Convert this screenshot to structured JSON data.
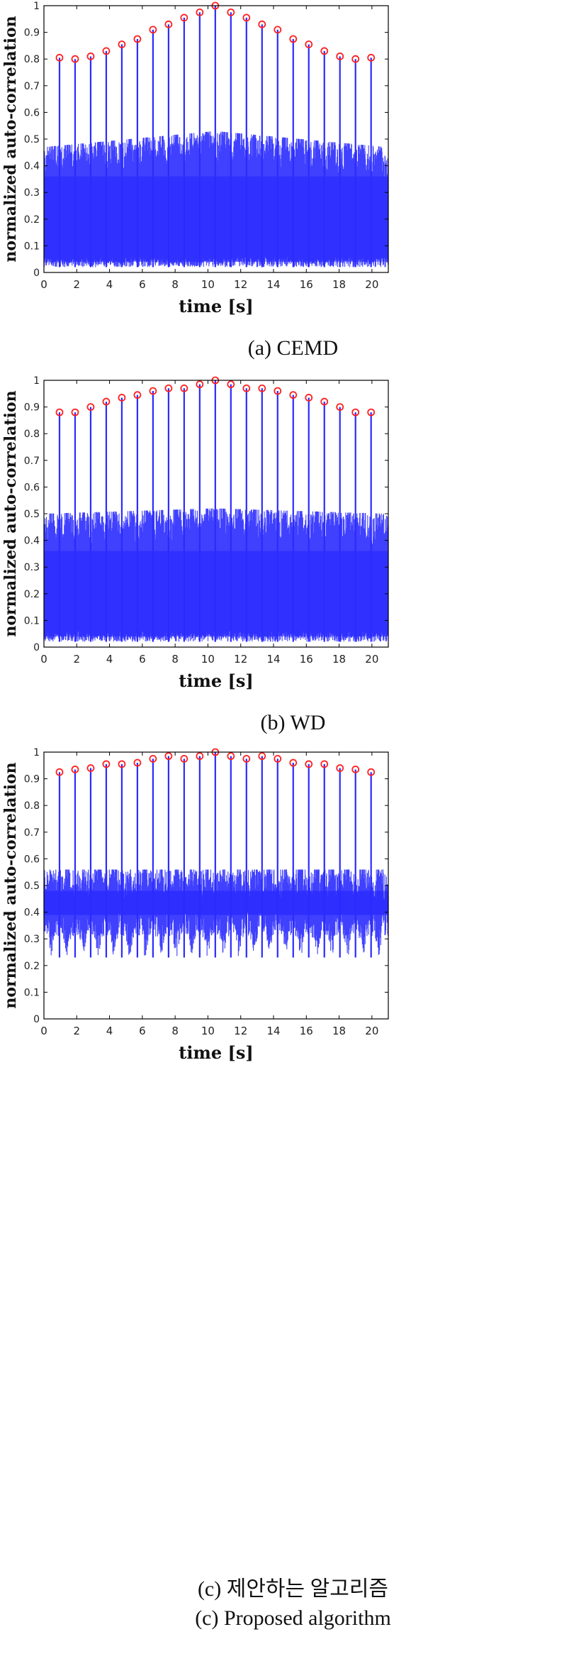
{
  "colors": {
    "stem": "#2b2bff",
    "noise": "#1f1fff",
    "marker": "#ff2020",
    "axis": "#000000"
  },
  "chart_data": [
    {
      "type": "stem",
      "xlabel": "time [s]",
      "ylabel": "normalized auto-correlation",
      "xlim": [
        0,
        21
      ],
      "ylim": [
        0,
        1
      ],
      "xticks": [
        0,
        2,
        4,
        6,
        8,
        10,
        12,
        14,
        16,
        18,
        20
      ],
      "yticks": [
        0,
        0.1,
        0.2,
        0.3,
        0.4,
        0.5,
        0.6,
        0.7,
        0.8,
        0.9,
        1
      ],
      "peaks_x": [
        0.95,
        1.9,
        2.85,
        3.8,
        4.75,
        5.7,
        6.65,
        7.6,
        8.55,
        9.5,
        10.45,
        11.4,
        12.35,
        13.3,
        14.25,
        15.2,
        16.15,
        17.1,
        18.05,
        19.0,
        19.95
      ],
      "peaks_y": [
        0.805,
        0.8,
        0.81,
        0.83,
        0.855,
        0.875,
        0.91,
        0.93,
        0.955,
        0.975,
        1.0,
        0.975,
        0.955,
        0.93,
        0.91,
        0.875,
        0.855,
        0.83,
        0.81,
        0.8,
        0.805
      ],
      "noise_band": {
        "low": 0.02,
        "high_edge": 0.47,
        "high_center": 0.53
      },
      "caption": "(a)  CEMD"
    },
    {
      "type": "stem",
      "xlabel": "time [s]",
      "ylabel": "normalized auto-correlation",
      "xlim": [
        0,
        21
      ],
      "ylim": [
        0,
        1
      ],
      "xticks": [
        0,
        2,
        4,
        6,
        8,
        10,
        12,
        14,
        16,
        18,
        20
      ],
      "yticks": [
        0,
        0.1,
        0.2,
        0.3,
        0.4,
        0.5,
        0.6,
        0.7,
        0.8,
        0.9,
        1
      ],
      "peaks_x": [
        0.95,
        1.9,
        2.85,
        3.8,
        4.75,
        5.7,
        6.65,
        7.6,
        8.55,
        9.5,
        10.45,
        11.4,
        12.35,
        13.3,
        14.25,
        15.2,
        16.15,
        17.1,
        18.05,
        19.0,
        19.95
      ],
      "peaks_y": [
        0.88,
        0.88,
        0.9,
        0.92,
        0.935,
        0.945,
        0.96,
        0.97,
        0.97,
        0.985,
        1.0,
        0.985,
        0.97,
        0.97,
        0.96,
        0.945,
        0.935,
        0.92,
        0.9,
        0.88,
        0.88
      ],
      "noise_band": {
        "low": 0.02,
        "high_edge": 0.5,
        "high_center": 0.52
      },
      "caption": "(b)  WD"
    },
    {
      "type": "stem",
      "xlabel": "time [s]",
      "ylabel": "normalized auto-correlation",
      "xlim": [
        0,
        21
      ],
      "ylim": [
        0,
        1
      ],
      "xticks": [
        0,
        2,
        4,
        6,
        8,
        10,
        12,
        14,
        16,
        18,
        20
      ],
      "yticks": [
        0,
        0.1,
        0.2,
        0.3,
        0.4,
        0.5,
        0.6,
        0.7,
        0.8,
        0.9,
        1
      ],
      "peaks_x": [
        0.95,
        1.9,
        2.85,
        3.8,
        4.75,
        5.7,
        6.65,
        7.6,
        8.55,
        9.5,
        10.45,
        11.4,
        12.35,
        13.3,
        14.25,
        15.2,
        16.15,
        17.1,
        18.05,
        19.0,
        19.95
      ],
      "peaks_y": [
        0.925,
        0.935,
        0.94,
        0.955,
        0.955,
        0.96,
        0.975,
        0.985,
        0.975,
        0.985,
        1.0,
        0.985,
        0.975,
        0.985,
        0.975,
        0.96,
        0.955,
        0.955,
        0.94,
        0.935,
        0.925
      ],
      "noise_band": {
        "low": 0.23,
        "high_edge": 0.56,
        "high_center": 0.56
      },
      "caption": "(c)  제안하는  알고리즘",
      "caption2": "(c)  Proposed  algorithm"
    }
  ]
}
